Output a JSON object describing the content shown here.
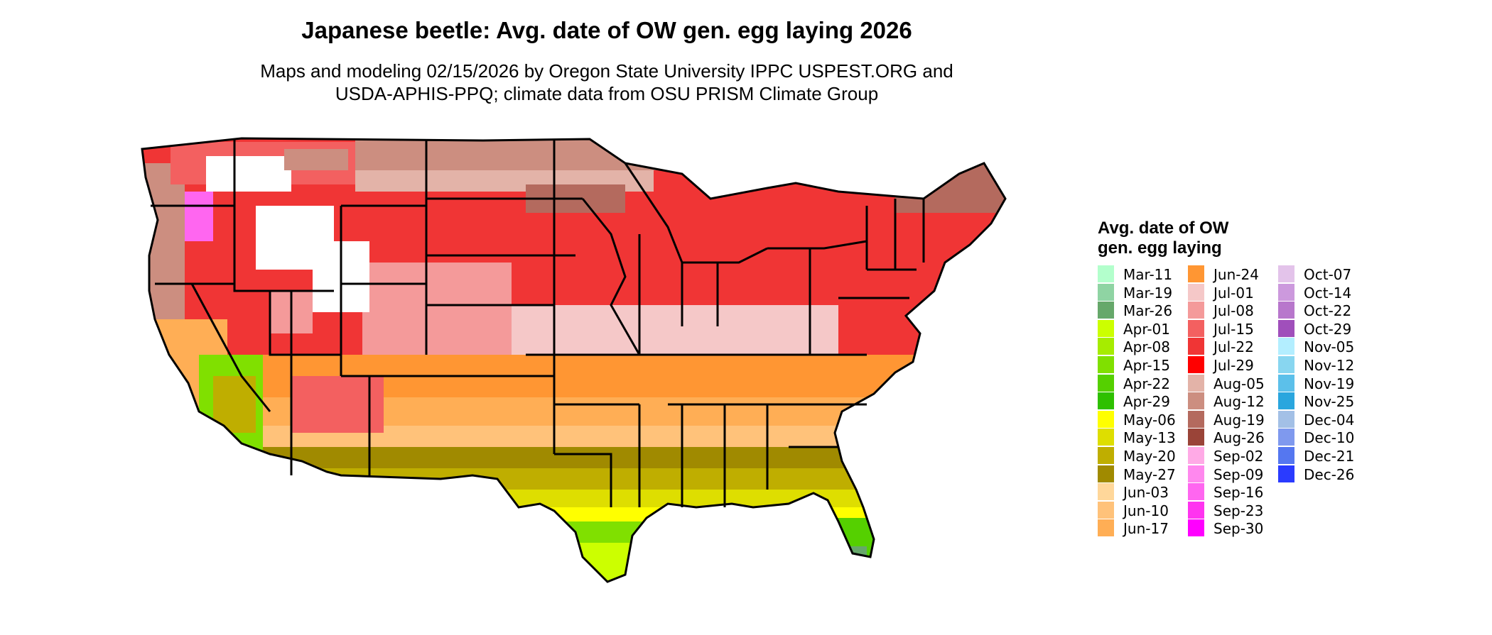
{
  "title": "Japanese beetle: Avg. date of OW gen. egg laying 2026",
  "subtitle_lines": [
    "Maps and modeling 02/15/2026 by Oregon State University IPPC USPEST.ORG and",
    "USDA-APHIS-PPQ; climate data from OSU PRISM Climate Group"
  ],
  "legend": {
    "title_lines": [
      "Avg. date of OW",
      "gen. egg laying"
    ],
    "items": [
      {
        "label": "Mar-11",
        "color": "#b3ffcc"
      },
      {
        "label": "Mar-19",
        "color": "#8fd4a3"
      },
      {
        "label": "Mar-26",
        "color": "#66a86a"
      },
      {
        "label": "Apr-01",
        "color": "#ccff00"
      },
      {
        "label": "Apr-08",
        "color": "#a6ec00"
      },
      {
        "label": "Apr-15",
        "color": "#80e000"
      },
      {
        "label": "Apr-22",
        "color": "#55d000"
      },
      {
        "label": "Apr-29",
        "color": "#2ec000"
      },
      {
        "label": "May-06",
        "color": "#ffff00"
      },
      {
        "label": "May-13",
        "color": "#dede00"
      },
      {
        "label": "May-20",
        "color": "#bfae00"
      },
      {
        "label": "May-27",
        "color": "#a08a00"
      },
      {
        "label": "Jun-03",
        "color": "#ffd79a"
      },
      {
        "label": "Jun-10",
        "color": "#ffc27a"
      },
      {
        "label": "Jun-17",
        "color": "#ffae55"
      },
      {
        "label": "Jun-24",
        "color": "#ff9633"
      },
      {
        "label": "Jul-01",
        "color": "#f5c8c8"
      },
      {
        "label": "Jul-08",
        "color": "#f49a9a"
      },
      {
        "label": "Jul-15",
        "color": "#f36060"
      },
      {
        "label": "Jul-22",
        "color": "#f03535"
      },
      {
        "label": "Jul-29",
        "color": "#ff0000"
      },
      {
        "label": "Aug-05",
        "color": "#e3b3a8"
      },
      {
        "label": "Aug-12",
        "color": "#cc8e80"
      },
      {
        "label": "Aug-19",
        "color": "#b46a5e"
      },
      {
        "label": "Aug-26",
        "color": "#9a4438"
      },
      {
        "label": "Sep-02",
        "color": "#ffaae6"
      },
      {
        "label": "Sep-09",
        "color": "#ff88ee"
      },
      {
        "label": "Sep-16",
        "color": "#ff66f0"
      },
      {
        "label": "Sep-23",
        "color": "#ff33f0"
      },
      {
        "label": "Sep-30",
        "color": "#ff00ff"
      },
      {
        "label": "Oct-07",
        "color": "#e3c3ea"
      },
      {
        "label": "Oct-14",
        "color": "#cc99dd"
      },
      {
        "label": "Oct-22",
        "color": "#b877cc"
      },
      {
        "label": "Oct-29",
        "color": "#a04fbb"
      },
      {
        "label": "Nov-05",
        "color": "#b3eeff"
      },
      {
        "label": "Nov-12",
        "color": "#88d6f0"
      },
      {
        "label": "Nov-19",
        "color": "#5cc0ea"
      },
      {
        "label": "Nov-25",
        "color": "#2aa6de"
      },
      {
        "label": "Dec-04",
        "color": "#a3c0e6"
      },
      {
        "label": "Dec-10",
        "color": "#7f99ee"
      },
      {
        "label": "Dec-21",
        "color": "#5577f0"
      },
      {
        "label": "Dec-26",
        "color": "#2a3bff"
      }
    ]
  }
}
